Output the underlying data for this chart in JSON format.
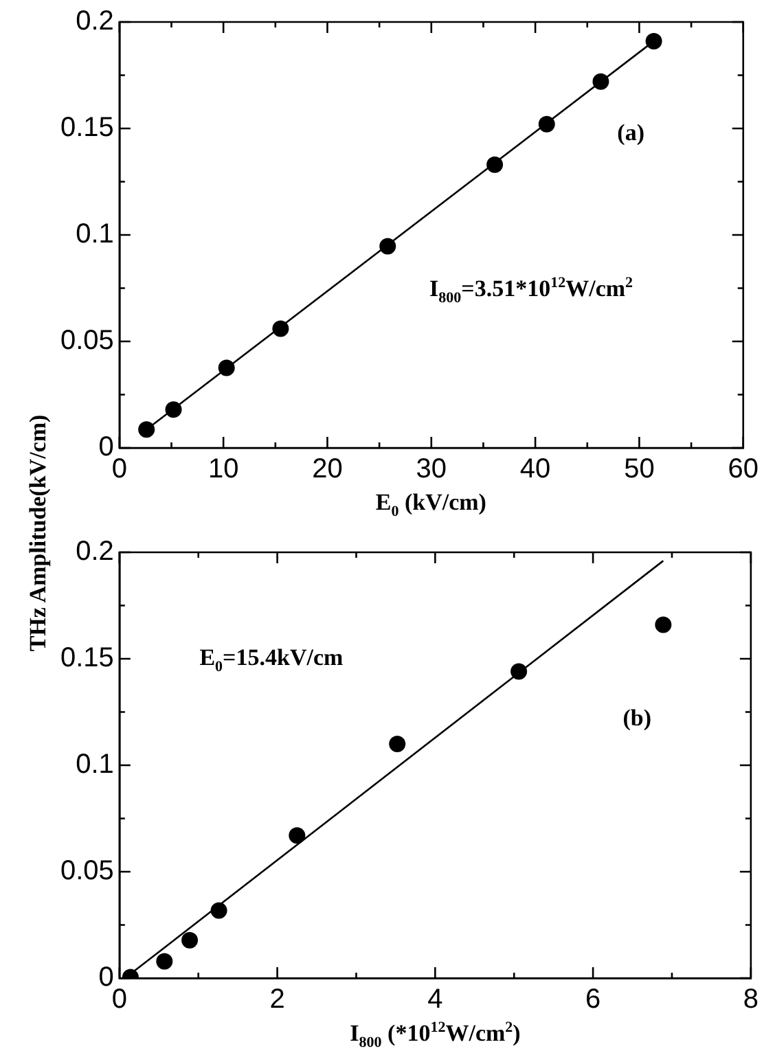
{
  "chart_data": [
    {
      "type": "scatter",
      "ylabel": "THz Amplitude(kV/cm)",
      "xlabel": "E$_{0}$ (kV/cm)",
      "annotations": [
        "(a)",
        "I$_{800}$=3.51*10$^{12}$W/cm$^{2}$"
      ],
      "grid": false,
      "legend": false,
      "xlim": [
        0,
        60
      ],
      "xticks": [
        0,
        {
          "value": 5,
          "label": null
        },
        10,
        {
          "value": 15,
          "label": null
        },
        20,
        {
          "value": 25,
          "label": null
        },
        30,
        {
          "value": 35,
          "label": null
        },
        40,
        {
          "value": 45,
          "label": null
        },
        50,
        {
          "value": 55,
          "label": null
        },
        60
      ],
      "ylim": [
        0,
        0.2
      ],
      "yticks": [
        0,
        {
          "value": 0.025,
          "label": null
        },
        0.05,
        {
          "value": 0.075,
          "label": null
        },
        0.1,
        {
          "value": 0.125,
          "label": null
        },
        0.15,
        {
          "value": 0.175,
          "label": null
        },
        0.2
      ],
      "series": [
        {
          "color": "#000000",
          "marker": "circle",
          "x": [
            2.6,
            5.2,
            10.3,
            15.5,
            25.8,
            36.1,
            41.1,
            46.3,
            51.4
          ],
          "values": [
            0.0086,
            0.018,
            0.0376,
            0.056,
            0.0947,
            0.133,
            0.152,
            0.172,
            0.191
          ]
        },
        {
          "type": "line",
          "color": "#000000",
          "marker": "none",
          "line_style": "solid",
          "x": [
            2.6,
            51.4
          ],
          "values": [
            0.0086,
            0.191
          ]
        }
      ]
    },
    {
      "type": "scatter",
      "xlabel": "I$_{800}$ (*10$^{12}$W/cm$^{2}$)",
      "annotations": [
        "E$_{0}$=15.4kV/cm",
        "(b)"
      ],
      "grid": false,
      "legend": false,
      "xlim": [
        0,
        8
      ],
      "xticks": [
        0,
        {
          "value": 1,
          "label": null
        },
        2,
        {
          "value": 3,
          "label": null
        },
        4,
        {
          "value": 5,
          "label": null
        },
        6,
        {
          "value": 7,
          "label": null
        },
        8
      ],
      "ylim": [
        0,
        0.2
      ],
      "yticks": [
        0,
        {
          "value": 0.025,
          "label": null
        },
        0.05,
        {
          "value": 0.075,
          "label": null
        },
        0.1,
        {
          "value": 0.125,
          "label": null
        },
        0.15,
        {
          "value": 0.175,
          "label": null
        },
        0.2
      ],
      "series": [
        {
          "color": "#000000",
          "marker": "circle",
          "x": [
            0.14,
            0.57,
            0.89,
            1.26,
            2.25,
            3.52,
            5.06,
            6.89
          ],
          "values": [
            0.0005,
            0.0079,
            0.0178,
            0.0318,
            0.067,
            0.11,
            0.144,
            0.166
          ]
        },
        {
          "type": "line",
          "color": "#000000",
          "marker": "none",
          "line_style": "solid",
          "x": [
            0.14,
            6.89
          ],
          "values": [
            0.002,
            0.196
          ]
        }
      ]
    }
  ]
}
